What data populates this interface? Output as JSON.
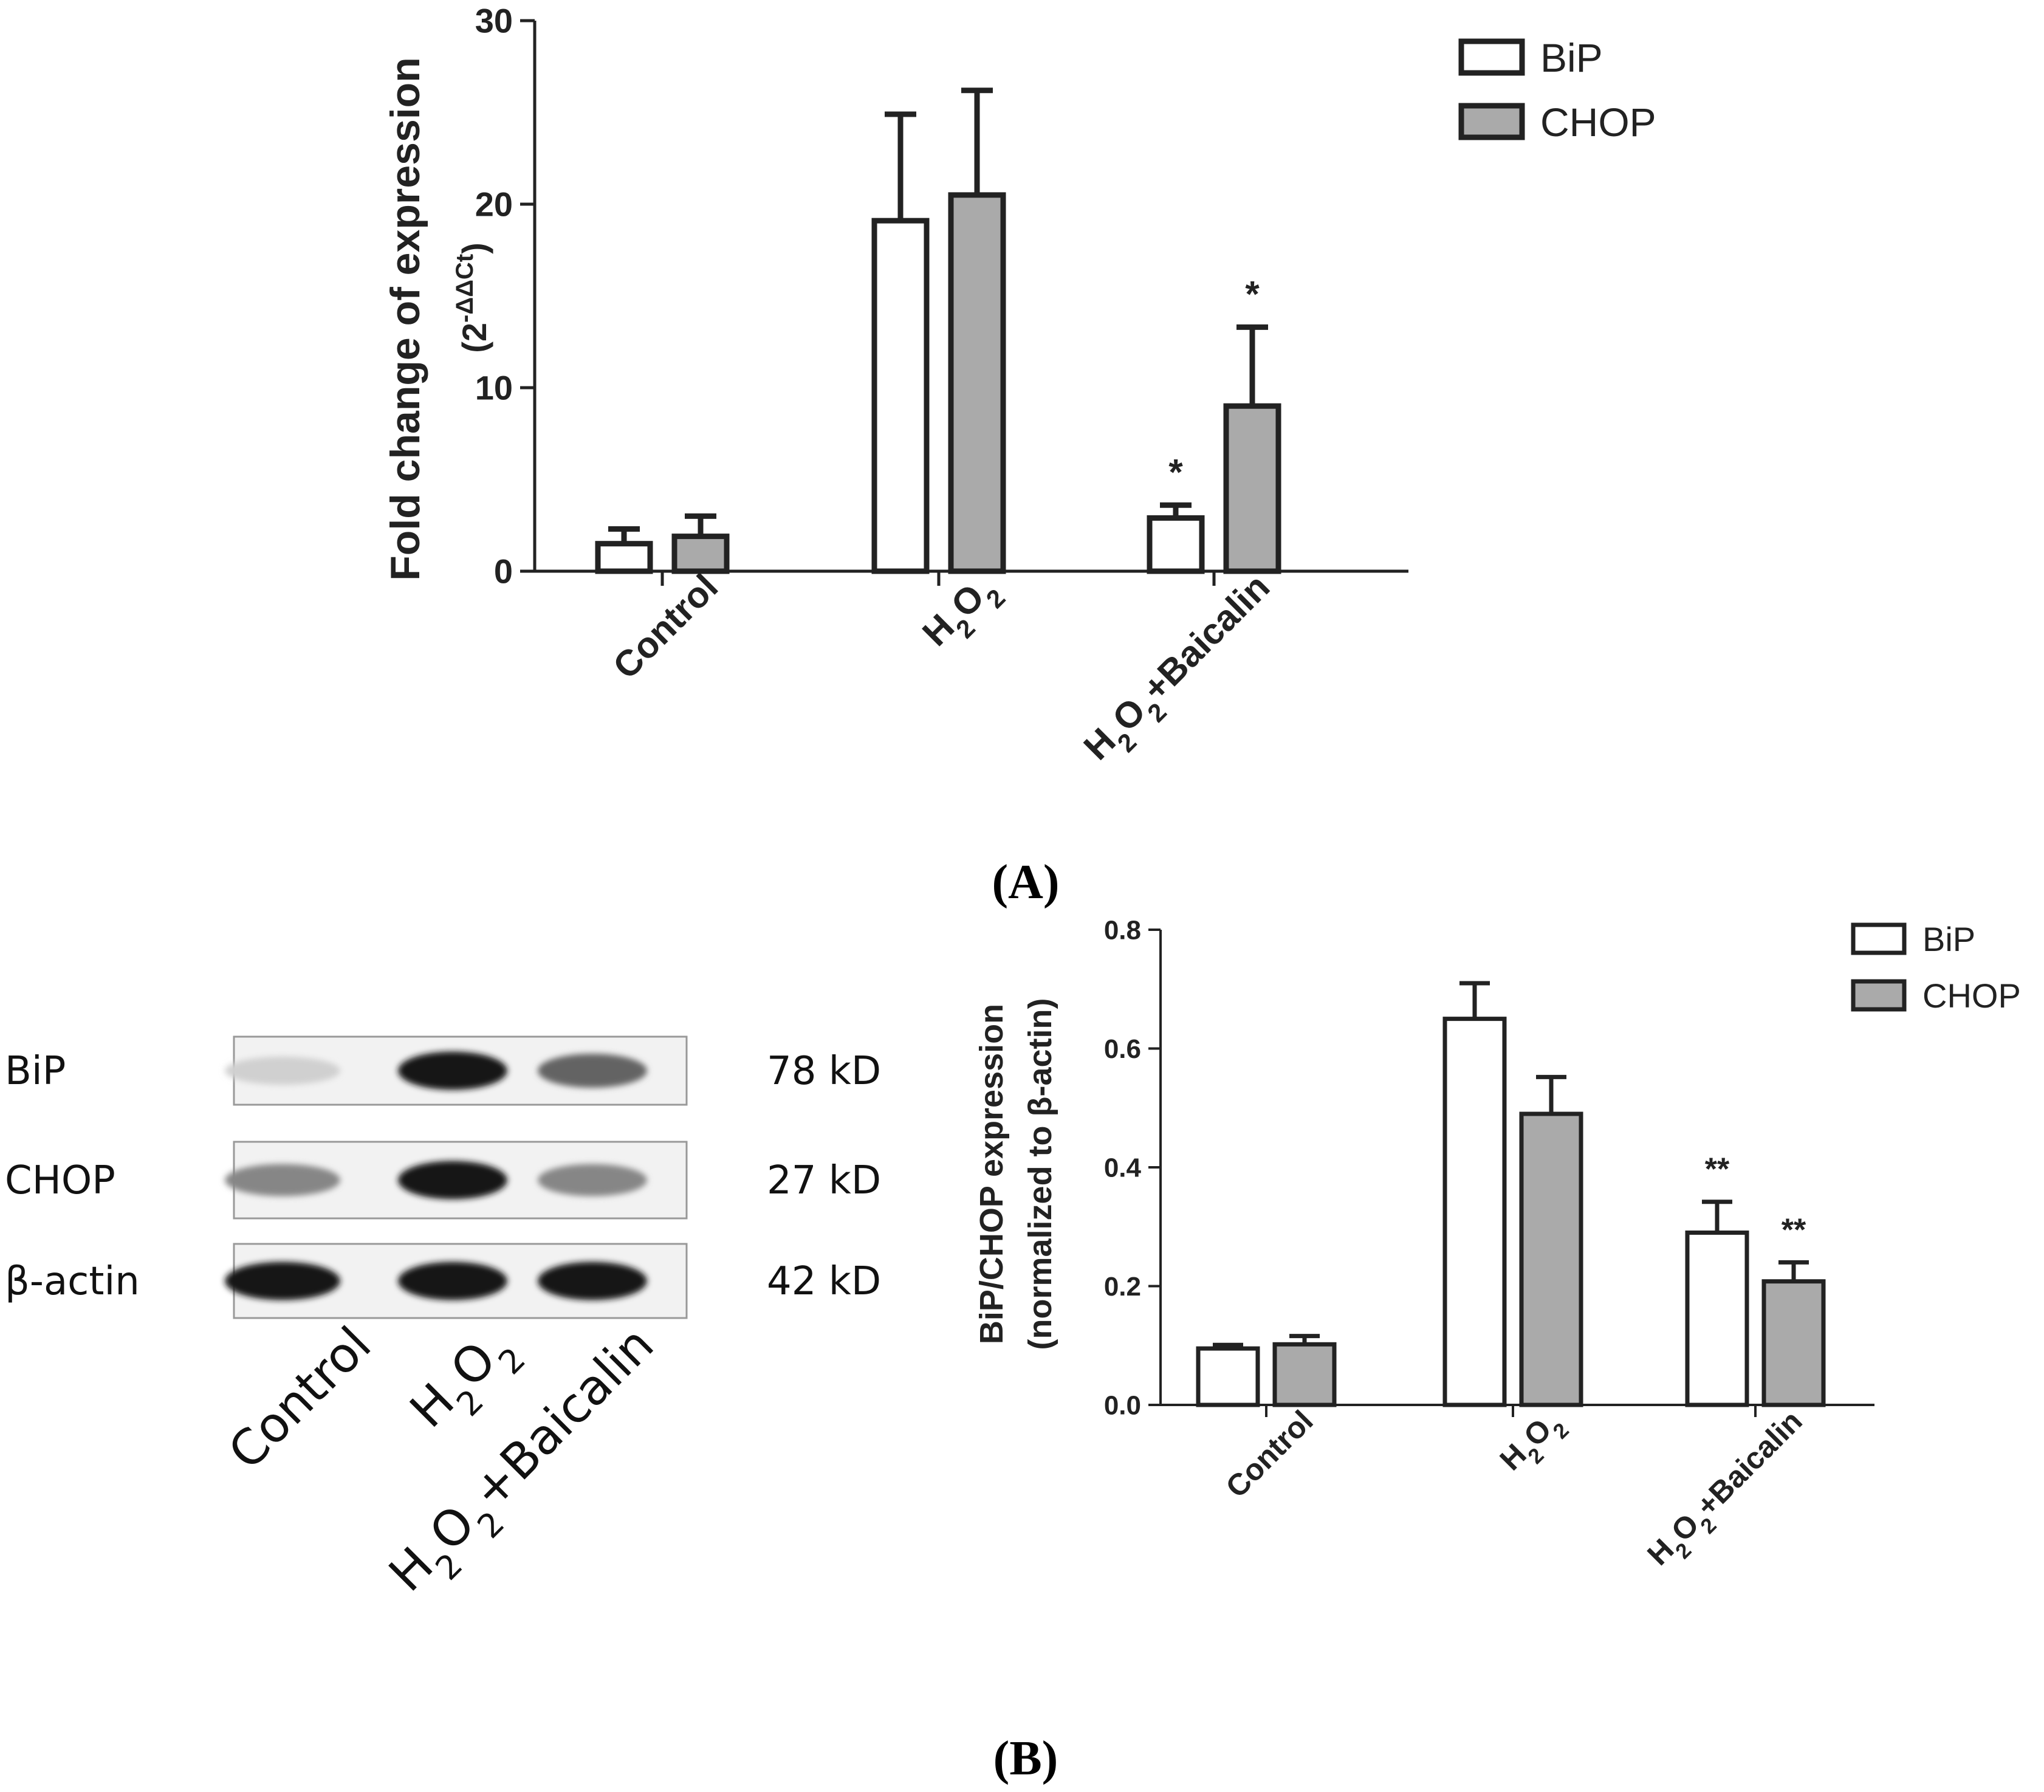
{
  "colors": {
    "bip": "#ffffff",
    "chop": "#aaaaaa",
    "stroke": "#222222"
  },
  "panel_a": {
    "label": "(A)"
  },
  "panel_b": {
    "label": "(B)",
    "blot": {
      "rows": [
        {
          "name": "BiP",
          "size": "78 kD",
          "intensities": [
            0.12,
            0.95,
            0.6
          ]
        },
        {
          "name": "CHOP",
          "size": "27 kD",
          "intensities": [
            0.45,
            0.95,
            0.45
          ]
        },
        {
          "name": "β-actin",
          "size": "42 kD",
          "intensities": [
            0.95,
            0.95,
            0.95
          ]
        }
      ],
      "lanes": [
        "Control",
        "H2O2",
        "H2O2+Baicalin"
      ]
    }
  },
  "chart_data": [
    {
      "type": "bar",
      "panel": "A",
      "categories": [
        "Control",
        "H2O2",
        "H2O2+Baicalin"
      ],
      "ylabel_line1": "Fold change of expression",
      "ylabel_line2": "(2-ΔΔCt)",
      "ylim": [
        0,
        30
      ],
      "yticks": [
        0,
        10,
        20,
        30
      ],
      "legend_position": "top-right",
      "series": [
        {
          "name": "BiP",
          "values": [
            1.5,
            19.1,
            2.9
          ],
          "errors": [
            0.8,
            5.8,
            0.7
          ],
          "annotations": [
            "",
            "",
            "*"
          ]
        },
        {
          "name": "CHOP",
          "values": [
            1.9,
            20.5,
            9.0
          ],
          "errors": [
            1.1,
            5.7,
            4.3
          ],
          "annotations": [
            "",
            "",
            "*"
          ]
        }
      ]
    },
    {
      "type": "bar",
      "panel": "B",
      "categories": [
        "Control",
        "H2O2",
        "H2O2+Baicalin"
      ],
      "ylabel_line1": "BiP/CHOP expression",
      "ylabel_line2": "(normalized to β-actin)",
      "ylim": [
        0,
        0.8
      ],
      "yticks": [
        "0.0",
        "0.2",
        "0.4",
        "0.6",
        "0.8"
      ],
      "legend_position": "top-right",
      "series": [
        {
          "name": "BiP",
          "values": [
            0.095,
            0.65,
            0.29
          ],
          "errors": [
            0.006,
            0.06,
            0.052
          ],
          "annotations": [
            "",
            "",
            "**"
          ]
        },
        {
          "name": "CHOP",
          "values": [
            0.102,
            0.49,
            0.208
          ],
          "errors": [
            0.014,
            0.062,
            0.032
          ],
          "annotations": [
            "",
            "",
            "**"
          ]
        }
      ]
    }
  ]
}
